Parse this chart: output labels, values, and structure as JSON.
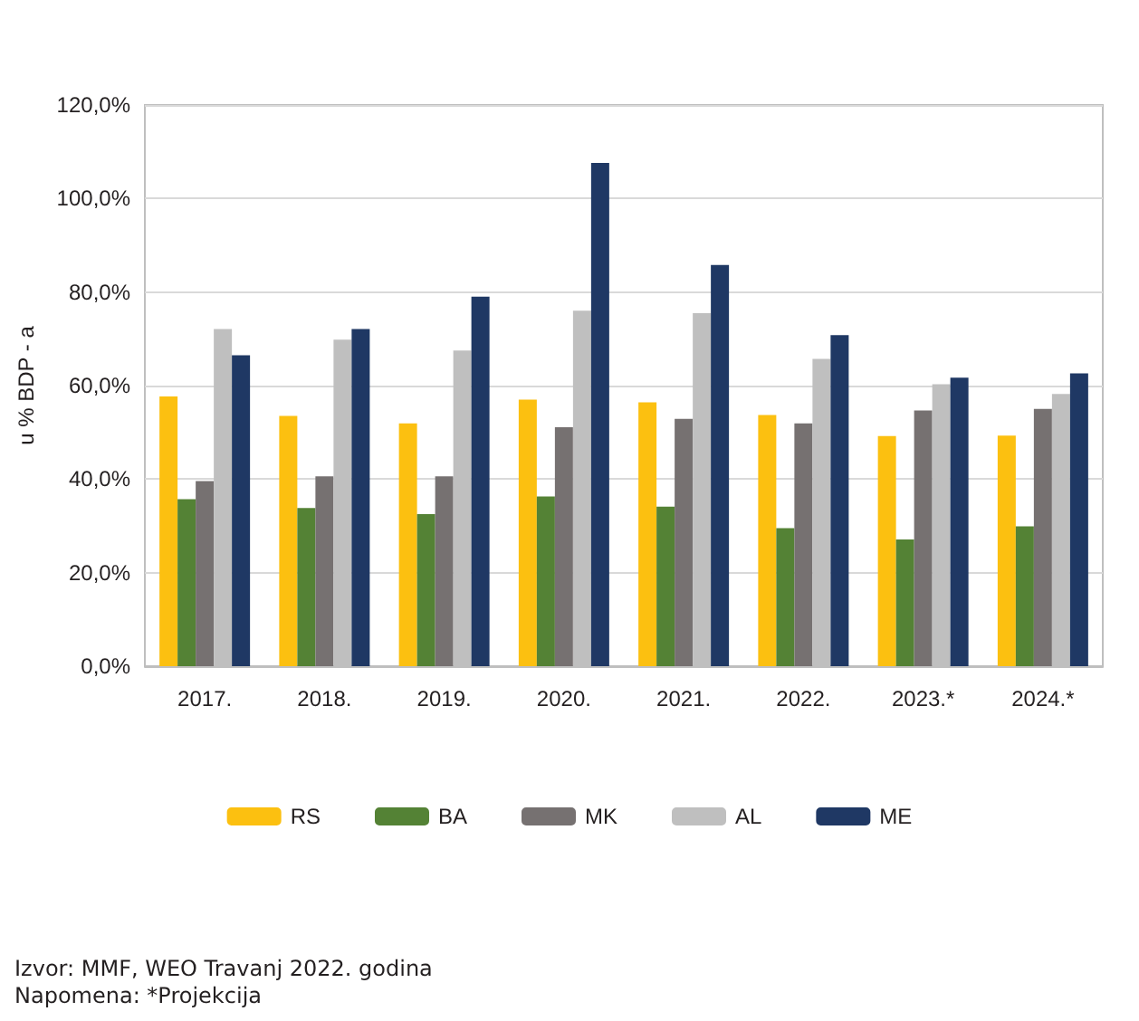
{
  "chart_data": {
    "type": "bar",
    "ylabel": "u % BDP - a",
    "categories": [
      "2017.",
      "2018.",
      "2019.",
      "2020.",
      "2021.",
      "2022.",
      "2023.*",
      "2024.*"
    ],
    "series": [
      {
        "name": "RS",
        "color": "#fcc010",
        "values": [
          57.7,
          53.5,
          51.9,
          57.0,
          56.4,
          53.7,
          49.2,
          49.3
        ]
      },
      {
        "name": "BA",
        "color": "#548235",
        "values": [
          35.7,
          33.8,
          32.5,
          36.3,
          34.1,
          29.5,
          27.1,
          29.9
        ]
      },
      {
        "name": "MK",
        "color": "#767171",
        "values": [
          39.6,
          40.6,
          40.6,
          51.1,
          52.9,
          51.9,
          54.7,
          55.0
        ]
      },
      {
        "name": "AL",
        "color": "#bfbfbf",
        "values": [
          72.1,
          69.8,
          67.5,
          76.0,
          75.5,
          65.7,
          60.3,
          58.2
        ]
      },
      {
        "name": "ME",
        "color": "#1f3864",
        "values": [
          66.5,
          72.1,
          79.0,
          107.6,
          85.8,
          70.8,
          61.7,
          62.6
        ]
      }
    ],
    "ylim": [
      0,
      120
    ],
    "yticks": [
      {
        "value": 0,
        "label": "0,0%"
      },
      {
        "value": 20,
        "label": "20,0%"
      },
      {
        "value": 40,
        "label": "40,0%"
      },
      {
        "value": 60,
        "label": "60,0%"
      },
      {
        "value": 80,
        "label": "80,0%"
      },
      {
        "value": 100,
        "label": "100,0%"
      },
      {
        "value": 120,
        "label": "120,0%"
      }
    ],
    "grid": "y",
    "legend": "bottom",
    "annotations": [
      "Izvor: MMF, WEO  Travanj 2022. godina",
      "Napomena: *Projekcija"
    ]
  }
}
